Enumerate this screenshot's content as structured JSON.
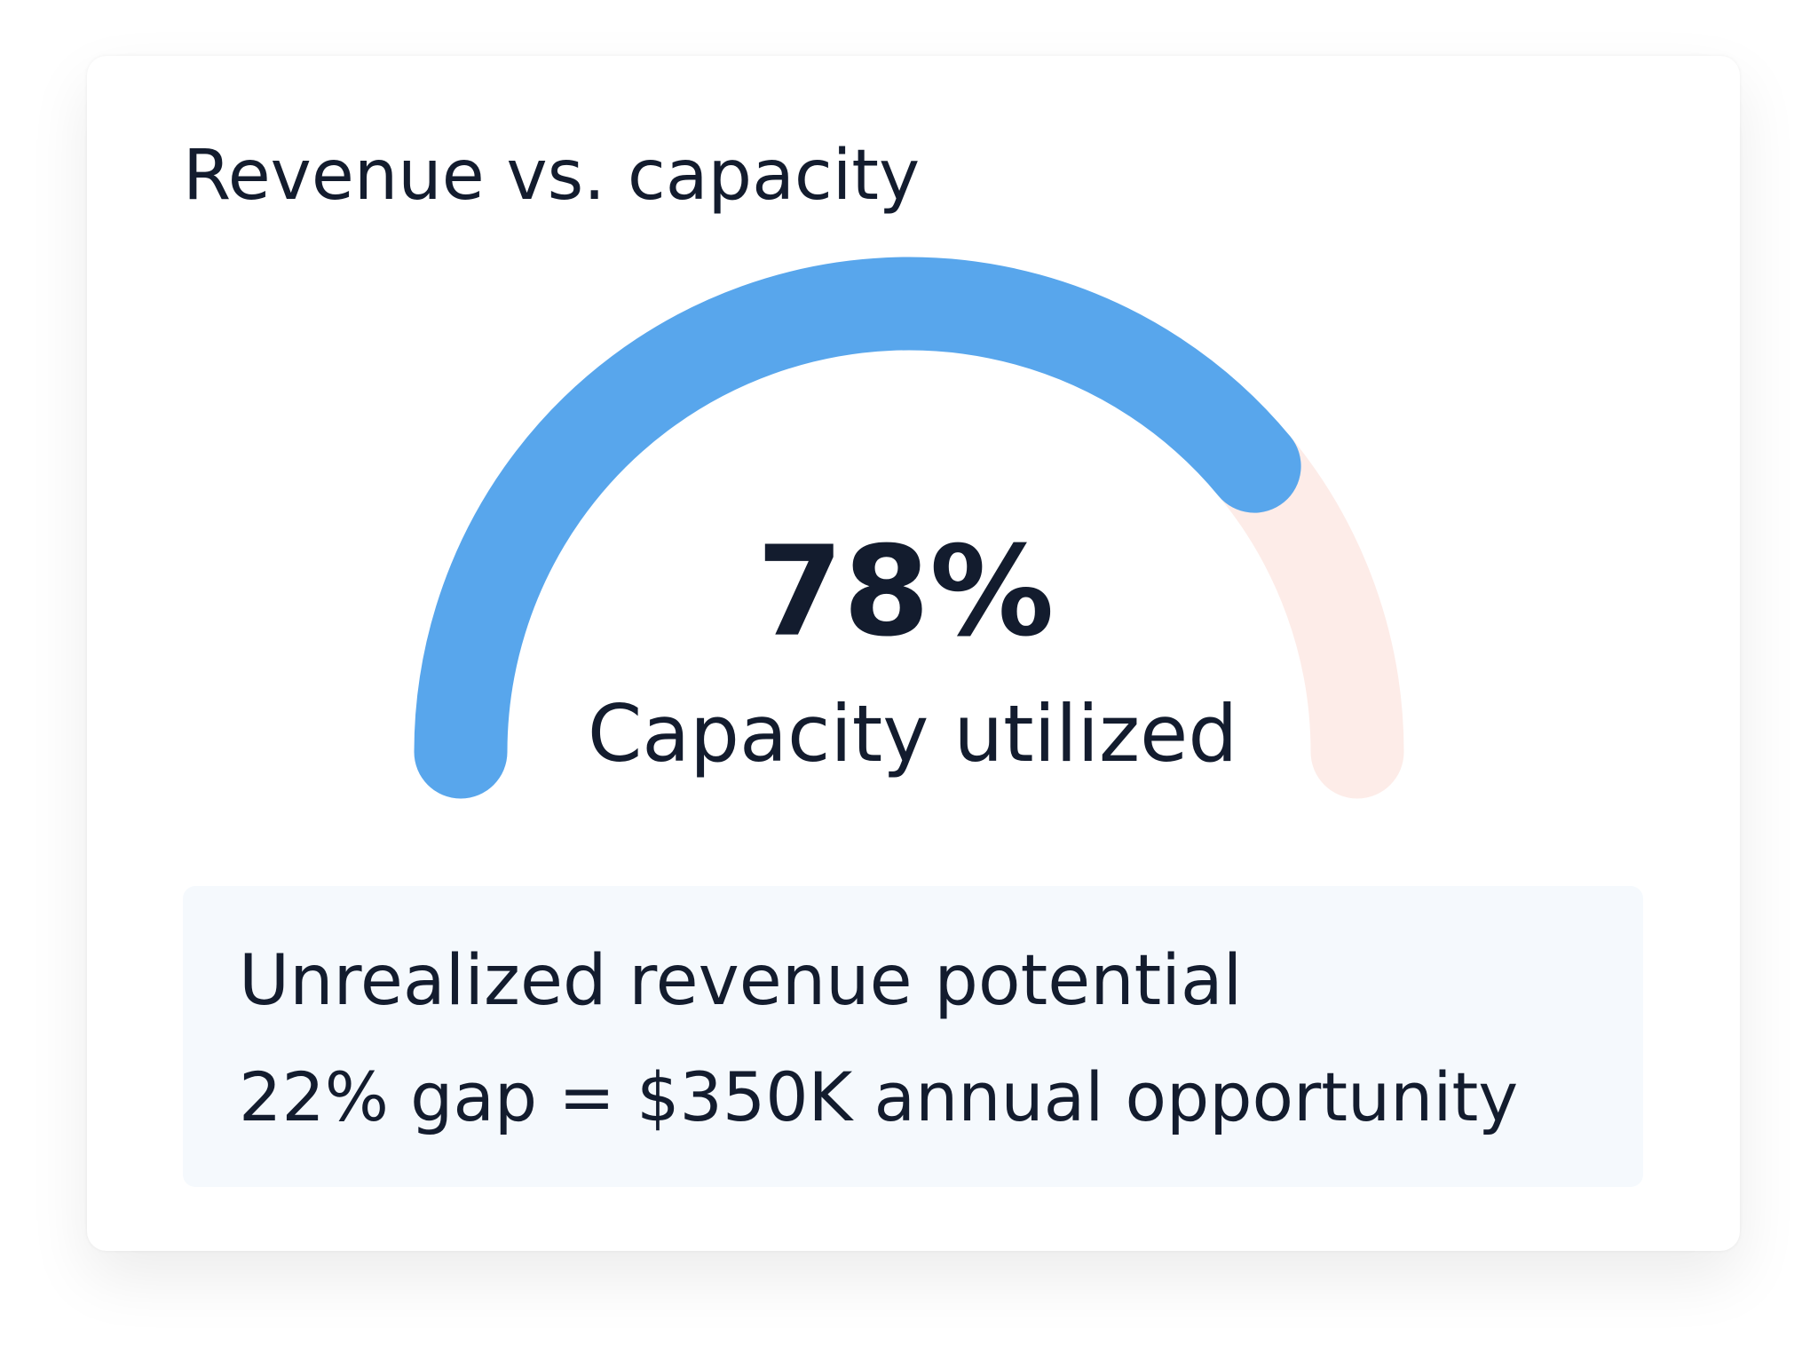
{
  "chart_data": {
    "type": "gauge",
    "title": "Revenue vs. capacity",
    "value": 78,
    "value_label": "78%",
    "caption": "Capacity utilized",
    "lim": [
      0,
      100
    ],
    "color": "#58a6ec",
    "track_color": "#fdece8"
  },
  "callout": {
    "title": "Unrealized revenue potential",
    "text": "22% gap = $350K annual opportunity"
  }
}
